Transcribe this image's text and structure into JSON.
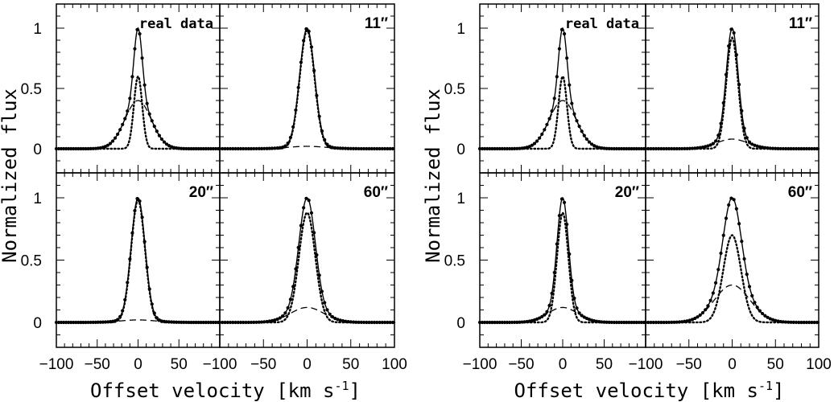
{
  "chart_data": [
    {
      "type": "line",
      "figure": "left",
      "xlabel": "Offset velocity [km s",
      "xlabel_sup": "-1",
      "xlabel_end": "]",
      "ylabel": "Normalized flux",
      "xlim": [
        -100,
        100
      ],
      "ylim": [
        -0.2,
        1.2
      ],
      "x_ticks": [
        -100,
        -50,
        0,
        50
      ],
      "x_ticks_last": [
        -100,
        -50,
        0,
        50,
        100
      ],
      "y_ticks": [
        0,
        0.5,
        1
      ],
      "panels": [
        {
          "label": "real data",
          "narrow": {
            "amp": 0.6,
            "fwhm": 12
          },
          "broad": {
            "amp": 0.4,
            "fwhm": 38
          }
        },
        {
          "label": "11″",
          "narrow": {
            "amp": 0.98,
            "fwhm": 20
          },
          "broad": {
            "amp": 0.02,
            "fwhm": 50
          }
        },
        {
          "label": "20″",
          "narrow": {
            "amp": 0.98,
            "fwhm": 20
          },
          "broad": {
            "amp": 0.02,
            "fwhm": 50
          }
        },
        {
          "label": "60″",
          "narrow": {
            "amp": 0.88,
            "fwhm": 22
          },
          "broad": {
            "amp": 0.12,
            "fwhm": 45
          }
        }
      ],
      "series": [
        {
          "name": "total",
          "style": "solid with dots"
        },
        {
          "name": "narrow component",
          "style": "dotted"
        },
        {
          "name": "broad component",
          "style": "dashed"
        }
      ]
    },
    {
      "type": "line",
      "figure": "right",
      "xlabel": "Offset velocity [km s",
      "xlabel_sup": "-1",
      "xlabel_end": "]",
      "ylabel": "Normalized flux",
      "xlim": [
        -100,
        100
      ],
      "ylim": [
        -0.2,
        1.2
      ],
      "x_ticks": [
        -100,
        -50,
        0,
        50
      ],
      "x_ticks_last": [
        -100,
        -50,
        0,
        50,
        100
      ],
      "y_ticks": [
        0,
        0.5,
        1
      ],
      "panels": [
        {
          "label": "real data",
          "narrow": {
            "amp": 0.6,
            "fwhm": 12
          },
          "broad": {
            "amp": 0.4,
            "fwhm": 38
          }
        },
        {
          "label": "11″",
          "narrow": {
            "amp": 0.92,
            "fwhm": 16
          },
          "broad": {
            "amp": 0.08,
            "fwhm": 42
          }
        },
        {
          "label": "20″",
          "narrow": {
            "amp": 0.88,
            "fwhm": 16
          },
          "broad": {
            "amp": 0.12,
            "fwhm": 42
          }
        },
        {
          "label": "60″",
          "narrow": {
            "amp": 0.7,
            "fwhm": 24
          },
          "broad": {
            "amp": 0.3,
            "fwhm": 48
          }
        }
      ],
      "series": [
        {
          "name": "total",
          "style": "solid with dots"
        },
        {
          "name": "narrow component",
          "style": "dotted"
        },
        {
          "name": "broad component",
          "style": "dashed"
        }
      ]
    }
  ]
}
